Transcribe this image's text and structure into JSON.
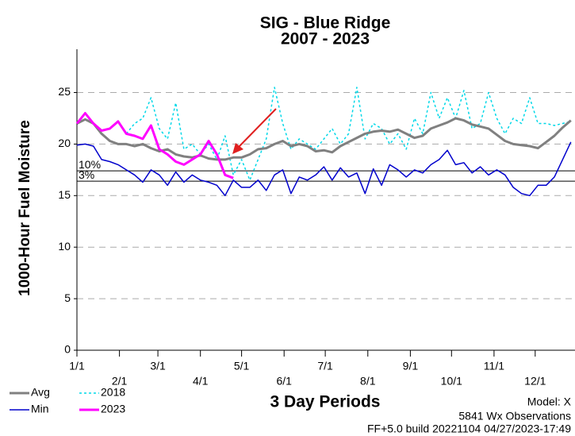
{
  "chart_data": {
    "type": "line",
    "title": "SIG - Blue Ridge",
    "subtitle": "2007 - 2023",
    "x_label": "3 Day Periods",
    "y_label": "1000-Hour Fuel Moisture",
    "notes": [
      "Model: X",
      "5841 Wx Observations",
      "FF+5.0 build 20221104 04/27/2023-17:49"
    ],
    "x": [
      0,
      2,
      4,
      6,
      8,
      10,
      12,
      14,
      16,
      18,
      20,
      22,
      24,
      26,
      28,
      30,
      32,
      34,
      36,
      38,
      40,
      42,
      44,
      46,
      48,
      50,
      52,
      54,
      56,
      58,
      60,
      62,
      64,
      66,
      68,
      70,
      72,
      74,
      76,
      78,
      80,
      82,
      84,
      86,
      88,
      90,
      92,
      94,
      96,
      98,
      100,
      102,
      104,
      106,
      108,
      110,
      112,
      114,
      116,
      118,
      120
    ],
    "series": [
      {
        "name": "Avg",
        "color": "#808080",
        "width": 3,
        "style": "solid",
        "values": [
          22,
          22.4,
          22,
          21,
          20.3,
          20,
          20,
          19.8,
          20,
          19.6,
          19.3,
          19.5,
          19,
          18.8,
          18.7,
          18.9,
          18.6,
          18.5,
          18.5,
          18.7,
          18.7,
          19,
          19.5,
          19.6,
          20,
          20.3,
          19.8,
          20,
          19.8,
          19.3,
          19.4,
          19.2,
          19.8,
          20.2,
          20.6,
          21,
          21.2,
          21.3,
          21.2,
          21.4,
          21,
          20.6,
          20.8,
          21.5,
          21.8,
          22.1,
          22.5,
          22.3,
          21.9,
          21.7,
          21.5,
          20.9,
          20.3,
          20,
          19.9,
          19.8,
          19.6,
          20.2,
          20.8,
          21.6,
          22.3
        ]
      },
      {
        "name": "Min",
        "color": "#0000cc",
        "width": 1.5,
        "style": "solid",
        "values": [
          19.9,
          20,
          19.8,
          18.5,
          18.3,
          18,
          17.5,
          17,
          16.3,
          17.5,
          17,
          16,
          17.3,
          16.3,
          17,
          16.5,
          16.3,
          16,
          15,
          16.5,
          15.8,
          15.8,
          16.5,
          15.5,
          17,
          17.5,
          15.2,
          16.8,
          16.5,
          17,
          17.8,
          16.5,
          17.7,
          16.8,
          17.2,
          15.2,
          17.6,
          16,
          18,
          17.5,
          16.8,
          17.5,
          17.2,
          18,
          18.5,
          19.4,
          18,
          18.2,
          17.2,
          17.8,
          17,
          17.5,
          17,
          15.8,
          15.2,
          15,
          16,
          16,
          16.8,
          18.5,
          20.2
        ]
      },
      {
        "name": "2018",
        "color": "#00d8e8",
        "width": 1.5,
        "style": "dotted",
        "values": [
          null,
          null,
          null,
          null,
          null,
          null,
          21,
          22,
          22.5,
          24.5,
          21.5,
          20.5,
          24,
          19.5,
          20,
          19,
          20,
          18.5,
          20.8,
          17,
          18.5,
          16.5,
          18.5,
          20.5,
          25.5,
          22,
          19.5,
          20.5,
          20,
          19.5,
          20.5,
          21.5,
          20,
          21,
          25.5,
          20.5,
          22,
          21.5,
          20,
          21,
          19.5,
          22.5,
          21,
          25,
          22.5,
          24.5,
          22.5,
          25.2,
          21.5,
          22,
          25,
          22.5,
          21,
          22.5,
          22,
          24.5,
          22,
          22,
          21.8,
          22,
          22.2
        ]
      },
      {
        "name": "2023",
        "color": "#ff00ff",
        "width": 3,
        "style": "solid",
        "values": [
          22,
          23,
          22,
          21.3,
          21.5,
          22.2,
          21,
          20.8,
          20.5,
          21.8,
          19.5,
          19,
          18.3,
          18,
          18.5,
          19,
          20.3,
          19,
          17,
          16.7,
          null,
          null,
          null,
          null,
          null,
          null,
          null,
          null,
          null,
          null,
          null,
          null,
          null,
          null,
          null,
          null,
          null,
          null,
          null,
          null,
          null,
          null,
          null,
          null,
          null,
          null,
          null,
          null,
          null,
          null,
          null,
          null,
          null,
          null,
          null,
          null,
          null,
          null,
          null,
          null,
          null
        ]
      }
    ],
    "ref_lines": [
      {
        "label": "10%",
        "value": 17.4
      },
      {
        "label": "3%",
        "value": 16.4
      }
    ],
    "xlim": [
      0,
      121
    ],
    "xticks": [
      {
        "value": 0,
        "label": "1/1"
      },
      {
        "value": 10.33,
        "label": "2/1"
      },
      {
        "value": 19.67,
        "label": "3/1"
      },
      {
        "value": 30,
        "label": "4/1"
      },
      {
        "value": 40,
        "label": "5/1"
      },
      {
        "value": 50.33,
        "label": "6/1"
      },
      {
        "value": 60.33,
        "label": "7/1"
      },
      {
        "value": 70.67,
        "label": "8/1"
      },
      {
        "value": 81,
        "label": "9/1"
      },
      {
        "value": 91,
        "label": "10/1"
      },
      {
        "value": 101.33,
        "label": "11/1"
      },
      {
        "value": 111.33,
        "label": "12/1"
      }
    ],
    "ylim": [
      0,
      29.2
    ],
    "yticks": [
      0,
      5,
      10,
      15,
      20,
      25
    ],
    "grid": true
  }
}
